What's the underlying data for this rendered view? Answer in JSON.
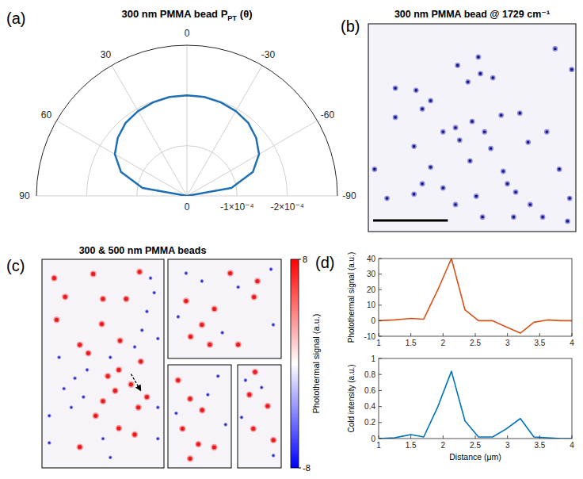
{
  "chart_data": [
    {
      "type": "polar",
      "panel_label": "(a)",
      "title": "300 nm PMMA bead P",
      "title_subscript": "PT",
      "title_suffix": "(θ)",
      "x": [
        -90,
        -80,
        -70,
        -60,
        -50,
        -40,
        -30,
        -20,
        -10,
        0,
        10,
        20,
        30,
        40,
        50,
        60,
        70,
        80,
        90
      ],
      "values": [
        0,
        -9e-05,
        -0.00014,
        -0.000166,
        -0.00018,
        -0.00019,
        -0.000195,
        -0.000198,
        -0.0002,
        -0.0002,
        -0.0002,
        -0.000198,
        -0.000195,
        -0.00019,
        -0.00018,
        -0.000166,
        -0.00014,
        -9e-05,
        0
      ],
      "color": "#1f6fb4",
      "xticks": [
        -90,
        -60,
        -30,
        0,
        30,
        60,
        90
      ],
      "ylim": [
        0,
        -0.0003
      ],
      "yticks": [
        0,
        {
          "value": -0.0001,
          "label": "-1×10⁻⁴"
        },
        {
          "value": -0.0002,
          "label": "-2×10⁻⁴"
        }
      ],
      "grid": true
    },
    {
      "type": "scatter",
      "panel_label": "(b)",
      "title": "300 nm PMMA bead @ 1729 cm⁻¹",
      "x": [
        53,
        43,
        54,
        60,
        13,
        30,
        26,
        13,
        64,
        36,
        42,
        50,
        56,
        73,
        77,
        86,
        44,
        59,
        49,
        22,
        30,
        3,
        26,
        36,
        42,
        52,
        65,
        67,
        71,
        78,
        92,
        97,
        98,
        90,
        22,
        9,
        55,
        70,
        84,
        96,
        48,
        23
      ],
      "values": [
        84,
        80,
        76,
        74,
        69,
        63,
        59,
        55,
        56,
        48,
        50,
        53,
        48,
        57,
        43,
        48,
        44,
        40,
        34,
        41,
        31,
        30,
        23,
        21,
        13,
        17,
        29,
        23,
        19,
        13,
        30,
        16,
        78,
        88,
        18,
        16,
        7,
        7,
        7,
        5,
        72,
        68
      ],
      "color": "#14147e",
      "xlim": [
        0,
        100
      ],
      "ylim": [
        0,
        100
      ],
      "tick_labels": false
    },
    {
      "type": "scatter",
      "panel_label": "(c)",
      "title": "300 & 500 nm PMMA beads",
      "xlim": [
        0,
        100
      ],
      "ylim": [
        0,
        100
      ],
      "tick_labels": false,
      "panels": [
        {
          "series": [
            {
              "color": "#e8191f",
              "x": [
                10,
                42,
                19,
                50,
                69,
                80,
                12,
                64,
                31,
                49,
                38,
                63,
                73,
                81,
                54,
                60,
                50,
                86,
                79,
                44,
                63,
                76,
                31
              ],
              "values": [
                91,
                93,
                82,
                81,
                81,
                94,
                71,
                61,
                59,
                69,
                55,
                47,
                40,
                51,
                44,
                37,
                32,
                34,
                29,
                25,
                19,
                16,
                10
              ]
            },
            {
              "color": "#2323c8",
              "x": [
                89,
                92,
                86,
                95,
                82,
                76,
                56,
                37,
                27,
                18,
                34,
                24,
                6,
                50,
                6,
                95,
                95,
                14,
                56
              ],
              "values": [
                91,
                84,
                75,
                62,
                66,
                58,
                53,
                47,
                43,
                38,
                34,
                29,
                25,
                14,
                12,
                29,
                14,
                53,
                5
              ]
            }
          ]
        },
        {
          "series": [
            {
              "color": "#e8191f",
              "x": [
                55,
                79,
                76,
                16,
                41,
                30,
                20,
                37,
                62
              ],
              "values": [
                86,
                78,
                62,
                58,
                50,
                34,
                22,
                14,
                14
              ]
            },
            {
              "color": "#2323c8",
              "x": [
                16,
                30,
                62,
                91,
                93,
                48,
                9
              ],
              "values": [
                86,
                78,
                72,
                90,
                34,
                26,
                42
              ]
            }
          ]
        },
        {
          "series": [
            {
              "color": "#e8191f",
              "x": [
                16,
                35,
                54,
                23,
                48,
                73,
                35
              ],
              "values": [
                85,
                67,
                56,
                38,
                23,
                20,
                9
              ]
            },
            {
              "color": "#2323c8",
              "x": [
                79,
                63,
                91,
                13
              ],
              "values": [
                89,
                71,
                42,
                53
              ]
            }
          ]
        },
        {
          "series": [
            {
              "color": "#e8191f",
              "x": [
                40,
                27,
                69,
                36,
                82
              ],
              "values": [
                93,
                71,
                60,
                38,
                27
              ]
            },
            {
              "color": "#2323c8",
              "x": [
                18,
                55,
                82,
                9
              ],
              "values": [
                85,
                78,
                12,
                49
              ]
            }
          ]
        }
      ],
      "colorbar": {
        "label": "Photothermal signal (a.u.)",
        "range": [
          -8,
          8
        ],
        "ticks": [
          8,
          -8
        ]
      }
    },
    {
      "type": "line",
      "panel_label": "(d)",
      "x": [
        1,
        1.25,
        1.5,
        1.7,
        1.92,
        2.13,
        2.34,
        2.55,
        2.77,
        2.98,
        3.2,
        3.41,
        3.62,
        3.83,
        4
      ],
      "xlim": [
        1,
        4
      ],
      "xticks": [
        1,
        1.5,
        2,
        2.5,
        3,
        3.5,
        4
      ],
      "xlabel": "Distance (μm)",
      "series": [
        {
          "color": "#d95319",
          "ylabel": "Photothermal signal (a.u.)",
          "ylim": [
            -10,
            40
          ],
          "yticks": [
            -10,
            0,
            10,
            20,
            30,
            40
          ],
          "values": [
            0,
            0.5,
            1.5,
            1,
            20,
            40,
            7,
            0,
            0,
            -4,
            -8,
            -1,
            0.5,
            0,
            0
          ]
        },
        {
          "color": "#0072bd",
          "ylabel": "Cold intensity (a.u.)",
          "ylim": [
            0,
            1
          ],
          "yticks": [
            0,
            0.2,
            0.4,
            0.6,
            0.8,
            1
          ],
          "values": [
            0,
            0.01,
            0.05,
            0.02,
            0.4,
            0.84,
            0.22,
            0.02,
            0.02,
            0.12,
            0.25,
            0.02,
            0.01,
            0,
            0
          ]
        }
      ]
    }
  ]
}
